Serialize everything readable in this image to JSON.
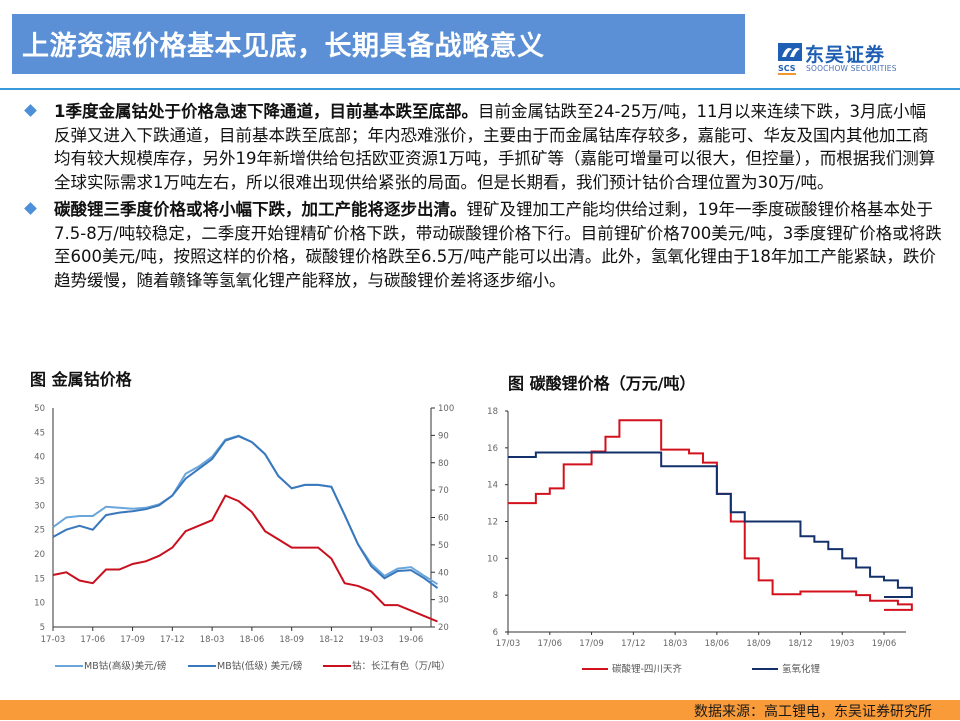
{
  "header": {
    "title": "上游资源价格基本见底，长期具备战略意义",
    "logo_cn": "东吴证券",
    "logo_abbr": "SCS",
    "logo_en": "SOOCHOW SECURITIES"
  },
  "bullets": [
    {
      "lead": "1季度金属钴处于价格急速下降通道，目前基本跌至底部。",
      "body": "目前金属钴跌至24-25万/吨，11月以来连续下跌，3月底小幅反弹又进入下跌通道，目前基本跌至底部；年内恐难涨价，主要由于而金属钴库存较多，嘉能可、华友及国内其他加工商均有较大规模库存，另外19年新增供给包括欧亚资源1万吨，手抓矿等（嘉能可增量可以很大，但控量），而根据我们测算全球实际需求1万吨左右，所以很难出现供给紧张的局面。但是长期看，我们预计钴价合理位置为30万/吨。"
    },
    {
      "lead": "碳酸锂三季度价格或将小幅下跌，加工产能将逐步出清。",
      "body": "锂矿及锂加工产能均供给过剩，19年一季度碳酸锂价格基本处于7.5-8万/吨较稳定，二季度开始锂精矿价格下跌，带动碳酸锂价格下行。目前锂矿价格700美元/吨，3季度锂矿价格或将跌至600美元/吨，按照这样的价格，碳酸锂价格跌至6.5万/吨产能可以出清。此外，氢氧化锂由于18年加工产能紧缺，跌价趋势缓慢，随着赣锋等氢氧化锂产能释放，与碳酸锂价差将逐步缩小。"
    }
  ],
  "figures": {
    "left_title": "图  金属钴价格",
    "right_title": "图  碳酸锂价格（万元/吨）"
  },
  "footer": {
    "source": "数据来源：高工锂电，东吴证券研究所"
  },
  "colors": {
    "title_bar": "#5b8fd6",
    "mb_high": "#6aa6da",
    "mb_low": "#3a78bd",
    "cobalt_cj": "#c8101e",
    "li2co3": "#d3111d",
    "lioh": "#13306b",
    "footer": "#f99b39"
  },
  "chart_data": [
    {
      "type": "line",
      "title": "金属钴价格",
      "categories": [
        "17-03",
        "17-06",
        "17-09",
        "17-12",
        "18-03",
        "18-06",
        "18-09",
        "18-12",
        "19-03",
        "19-06"
      ],
      "ylim_left": [
        5,
        50
      ],
      "yticks_left": [
        5,
        10,
        15,
        20,
        25,
        30,
        35,
        40,
        45,
        50
      ],
      "ylim_right": [
        20,
        100
      ],
      "yticks_right": [
        20,
        30,
        40,
        50,
        60,
        70,
        80,
        90,
        100
      ],
      "legend_position": "bottom",
      "series": [
        {
          "name": "MB钴(高级)美元/磅",
          "axis": "left",
          "x": [
            "17-03",
            "17-04",
            "17-05",
            "17-06",
            "17-07",
            "17-08",
            "17-09",
            "17-10",
            "17-11",
            "17-12",
            "18-01",
            "18-02",
            "18-03",
            "18-04",
            "18-05",
            "18-06",
            "18-07",
            "18-08",
            "18-09",
            "18-10",
            "18-11",
            "18-12",
            "19-01",
            "19-02",
            "19-03",
            "19-04",
            "19-05",
            "19-06",
            "19-07",
            "19-08"
          ],
          "values": [
            25.5,
            27.5,
            27.8,
            27.8,
            29.7,
            29.5,
            29.3,
            29.5,
            30.2,
            32,
            36.5,
            38,
            40,
            43.5,
            44.3,
            43,
            40.5,
            36,
            33.5,
            34.2,
            34.2,
            33.8,
            28,
            22,
            18,
            15.5,
            17,
            17.3,
            15.5,
            13.8
          ]
        },
        {
          "name": "MB钴(低级) 美元/磅",
          "axis": "left",
          "x": [
            "17-03",
            "17-04",
            "17-05",
            "17-06",
            "17-07",
            "17-08",
            "17-09",
            "17-10",
            "17-11",
            "17-12",
            "18-01",
            "18-02",
            "18-03",
            "18-04",
            "18-05",
            "18-06",
            "18-07",
            "18-08",
            "18-09",
            "18-10",
            "18-11",
            "18-12",
            "19-01",
            "19-02",
            "19-03",
            "19-04",
            "19-05",
            "19-06",
            "19-07",
            "19-08"
          ],
          "values": [
            23.5,
            25,
            25.8,
            25,
            28,
            28.5,
            28.8,
            29.2,
            30,
            32,
            35.5,
            37.5,
            39.5,
            43.3,
            44.2,
            43,
            40.5,
            36,
            33.5,
            34.2,
            34.2,
            33.8,
            28,
            22,
            17.5,
            15,
            16.5,
            16.7,
            15,
            13
          ]
        },
        {
          "name": "钴：长江有色（万/吨）",
          "axis": "right",
          "x": [
            "17-03",
            "17-04",
            "17-05",
            "17-06",
            "17-07",
            "17-08",
            "17-09",
            "17-10",
            "17-11",
            "17-12",
            "18-01",
            "18-02",
            "18-03",
            "18-04",
            "18-05",
            "18-06",
            "18-07",
            "18-08",
            "18-09",
            "18-10",
            "18-11",
            "18-12",
            "19-01",
            "19-02",
            "19-03",
            "19-04",
            "19-05",
            "19-06",
            "19-07",
            "19-08"
          ],
          "values": [
            39,
            40,
            37,
            36,
            41,
            41,
            43,
            44,
            46,
            49,
            55,
            57,
            59,
            68,
            66,
            62,
            55,
            52,
            49,
            49,
            49,
            45,
            36,
            35,
            33,
            28,
            28,
            26,
            24,
            22
          ]
        }
      ]
    },
    {
      "type": "line",
      "title": "碳酸锂价格（万元/吨）",
      "categories": [
        "17/03",
        "17/06",
        "17/09",
        "17/12",
        "18/03",
        "18/06",
        "18/09",
        "18/12",
        "19/03",
        "19/06"
      ],
      "ylim": [
        6,
        18
      ],
      "yticks": [
        6,
        8,
        10,
        12,
        14,
        16,
        18
      ],
      "legend_position": "bottom",
      "series": [
        {
          "name": "碳酸锂-四川天齐",
          "x": [
            "17/03",
            "17/05",
            "17/06",
            "17/07",
            "17/08",
            "17/09",
            "17/10",
            "17/11",
            "17/12",
            "18/01",
            "18/02",
            "18/03",
            "18/04",
            "18/05",
            "18/06",
            "18/07",
            "18/08",
            "18/09",
            "18/10",
            "18/11",
            "18/12",
            "19/01",
            "19/02",
            "19/03",
            "19/04",
            "19/05",
            "19/06",
            "19/07",
            "19/08"
          ],
          "values": [
            13,
            13.5,
            13.8,
            15.1,
            15.1,
            15.8,
            16.6,
            17.5,
            17.5,
            17.5,
            15.9,
            15.9,
            15.7,
            15.2,
            13.5,
            12,
            10,
            8.8,
            8.05,
            8.05,
            8.2,
            8.2,
            8.2,
            8.2,
            8,
            7.7,
            7.7,
            7.5,
            7.2
          ]
        },
        {
          "name": "氢氧化锂",
          "x": [
            "17/03",
            "17/05",
            "17/06",
            "17/09",
            "17/12",
            "18/01",
            "18/02",
            "18/03",
            "18/04",
            "18/05",
            "18/06",
            "18/07",
            "18/08",
            "18/09",
            "18/10",
            "18/11",
            "18/12",
            "19/01",
            "19/02",
            "19/03",
            "19/04",
            "19/05",
            "19/06",
            "19/07",
            "19/08"
          ],
          "values": [
            15.5,
            15.75,
            15.75,
            15.75,
            15.75,
            15.75,
            15,
            15,
            15,
            15,
            13.5,
            12.5,
            12,
            12,
            12,
            12,
            11.2,
            10.9,
            10.5,
            10,
            9.5,
            9,
            8.8,
            8.4,
            7.9
          ]
        }
      ]
    }
  ]
}
